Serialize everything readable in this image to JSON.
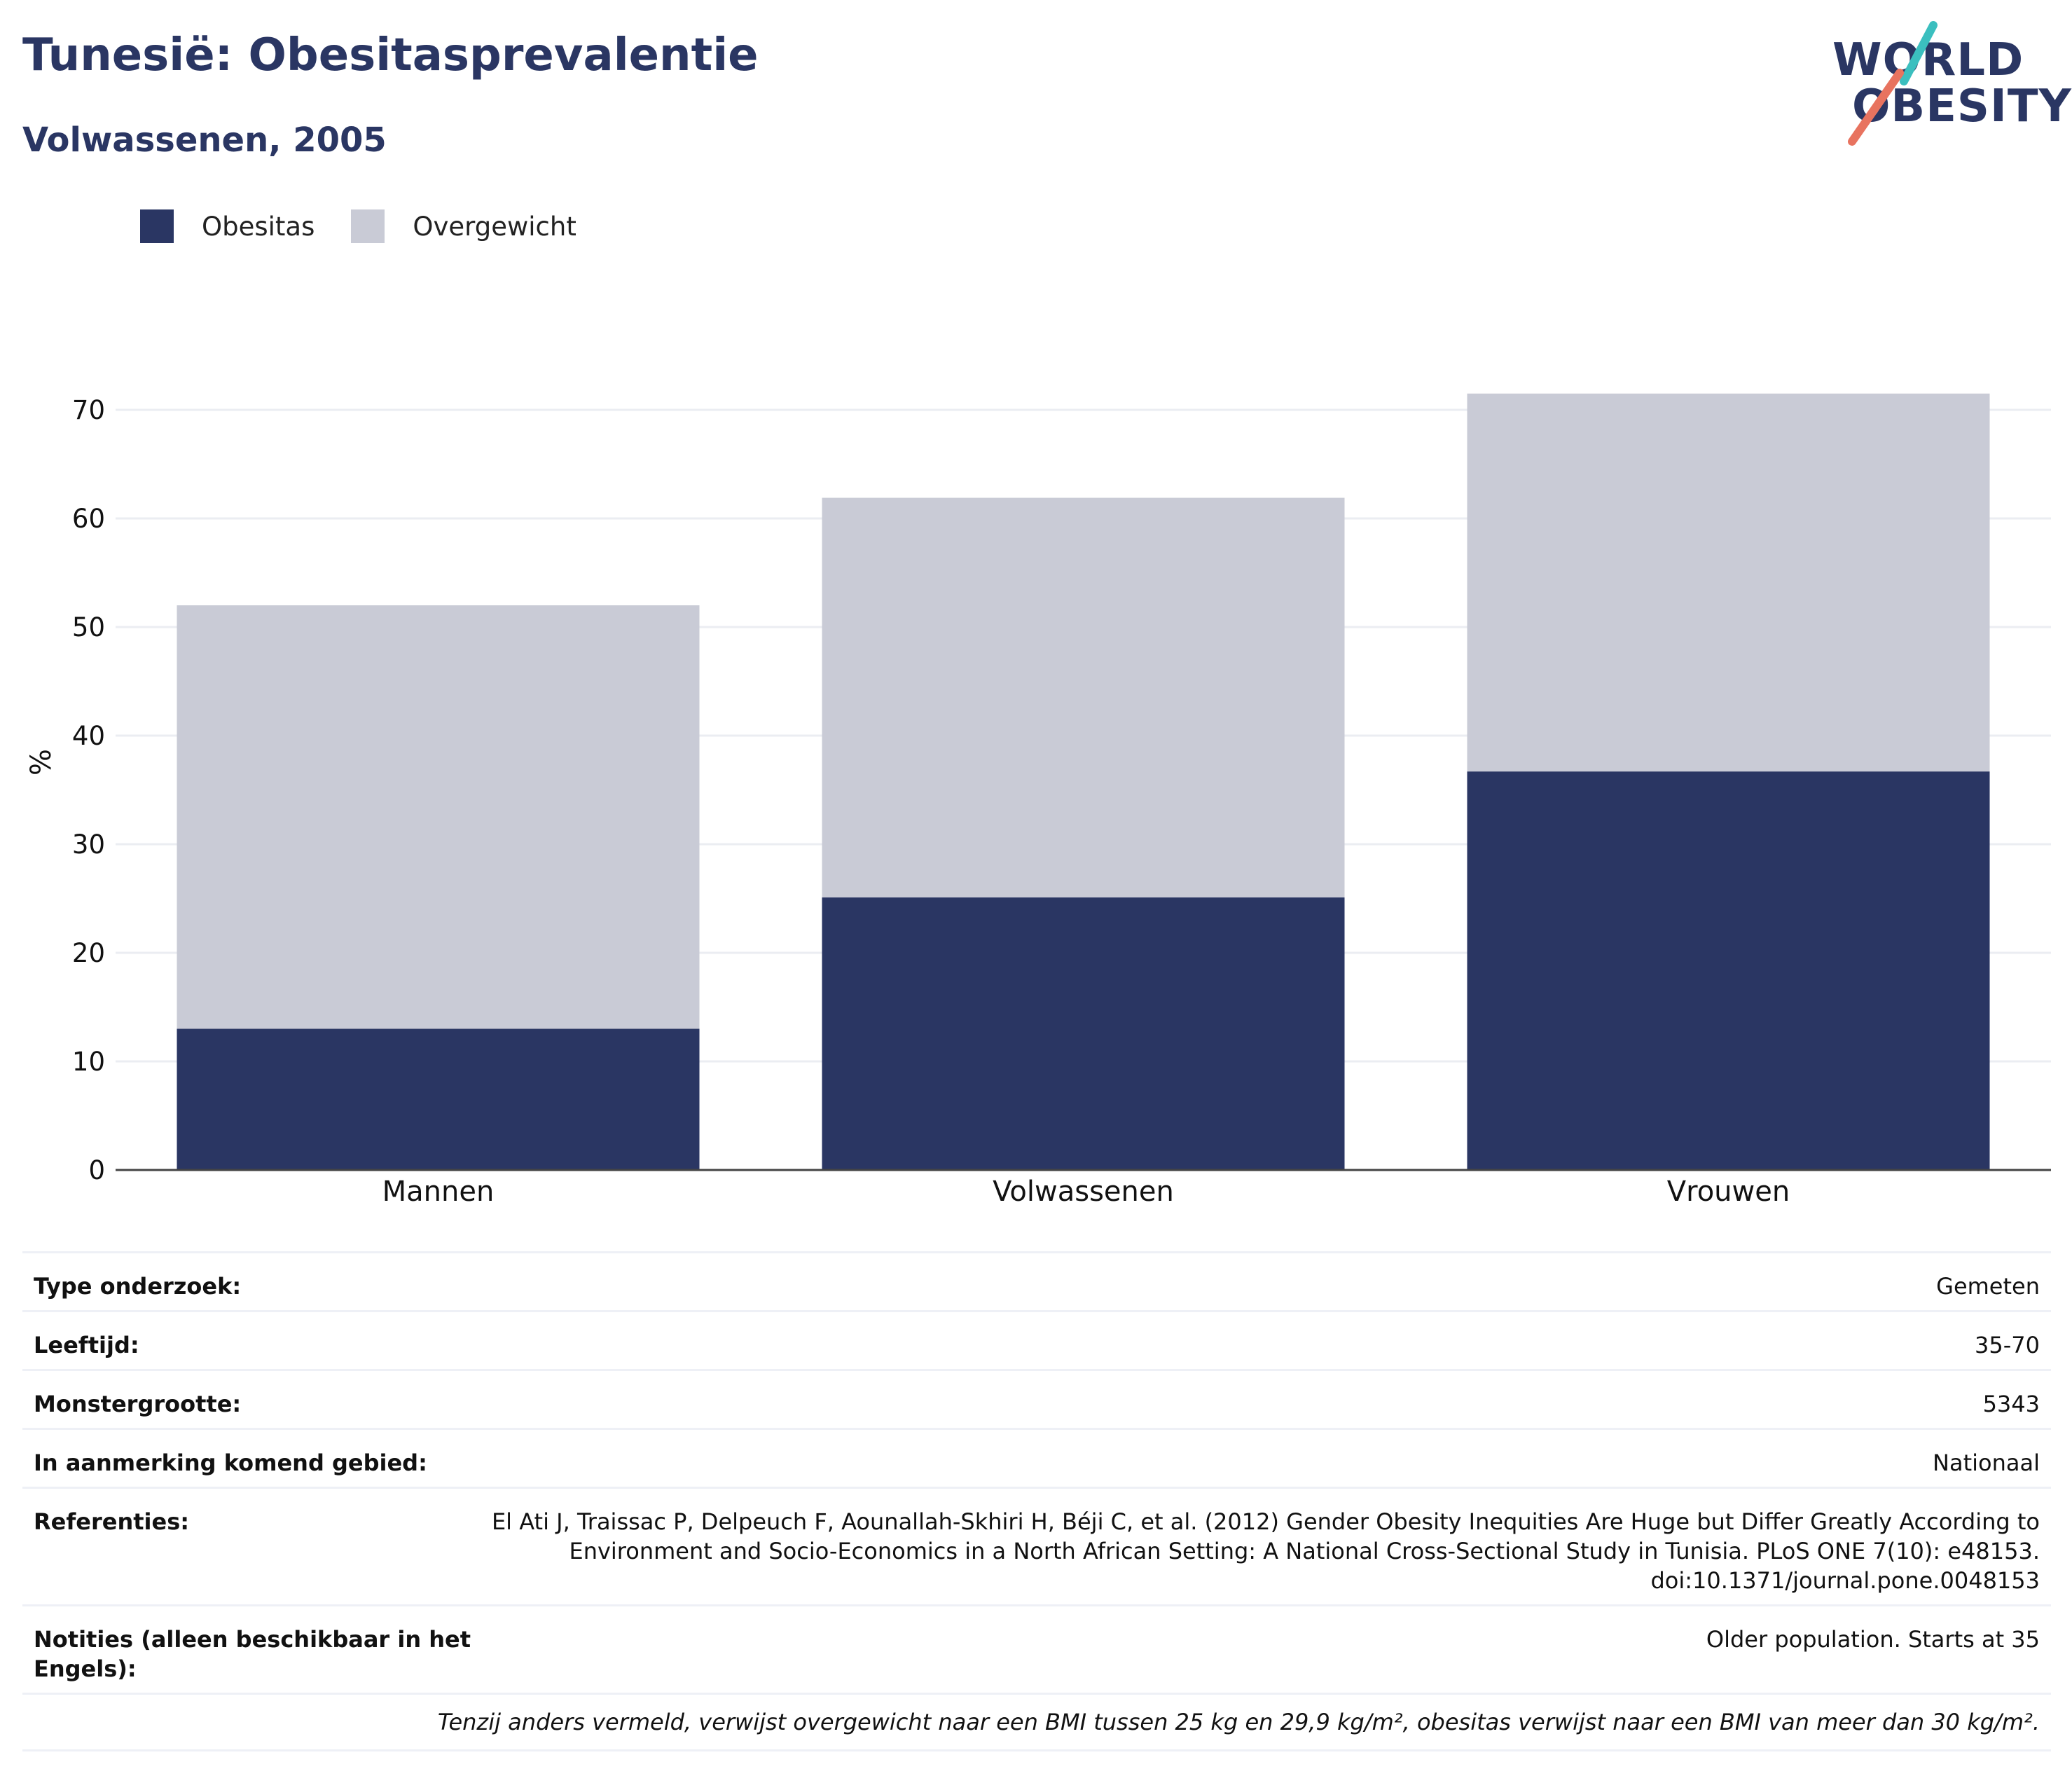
{
  "header": {
    "title": "Tunesië: Obesitasprevalentie",
    "subtitle": "Volwassenen, 2005"
  },
  "logo": {
    "line1": "WORLD",
    "line2": "OBESITY",
    "accent_teal": "#3bbfbf",
    "accent_coral": "#e8735f"
  },
  "colors": {
    "obesitas": "#2a3663",
    "overgewicht": "#c9cbd6",
    "title": "#2a3663"
  },
  "legend": [
    {
      "label": "Obesitas",
      "color": "#2a3663"
    },
    {
      "label": "Overgewicht",
      "color": "#c9cbd6"
    }
  ],
  "chart_data": {
    "type": "bar",
    "stacked": true,
    "categories": [
      "Mannen",
      "Volwassenen",
      "Vrouwen"
    ],
    "series": [
      {
        "name": "Obesitas",
        "values": [
          13.0,
          25.1,
          36.7
        ]
      },
      {
        "name": "Overgewicht",
        "values": [
          39.0,
          36.8,
          34.8
        ]
      }
    ],
    "ylabel": "%",
    "ylim": [
      0,
      75
    ],
    "yticks": [
      0,
      10,
      20,
      30,
      40,
      50,
      60,
      70
    ],
    "grid": true,
    "legend_position": "top-left"
  },
  "info_table": [
    {
      "key": "Type onderzoek:",
      "value": "Gemeten"
    },
    {
      "key": "Leeftijd:",
      "value": "35-70"
    },
    {
      "key": "Monstergrootte:",
      "value": "5343"
    },
    {
      "key": "In aanmerking komend gebied:",
      "value": "Nationaal"
    },
    {
      "key": "Referenties:",
      "value": "El Ati J, Traissac P, Delpeuch F, Aounallah-Skhiri H, Béji C, et al. (2012) Gender Obesity Inequities Are Huge but Differ Greatly According to Environment and Socio-Economics in a North African Setting: A National Cross-Sectional Study in Tunisia. PLoS ONE 7(10): e48153. doi:10.1371/journal.pone.0048153"
    },
    {
      "key": "Notities (alleen beschikbaar in het Engels):",
      "value": "Older population. Starts at 35"
    }
  ],
  "footnote": "Tenzij anders vermeld, verwijst overgewicht naar een BMI tussen 25 kg en 29,9 kg/m², obesitas verwijst naar een BMI van meer dan 30 kg/m²."
}
